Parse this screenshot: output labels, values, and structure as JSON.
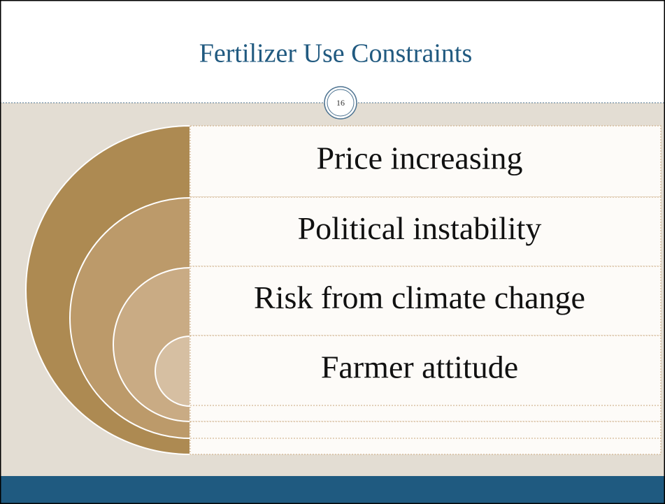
{
  "header": {
    "title": "Fertilizer Use Constraints",
    "page_number": "16"
  },
  "diagram": {
    "items": [
      "Price increasing",
      "Political instability",
      "Risk from climate change",
      "Farmer attitude"
    ]
  }
}
